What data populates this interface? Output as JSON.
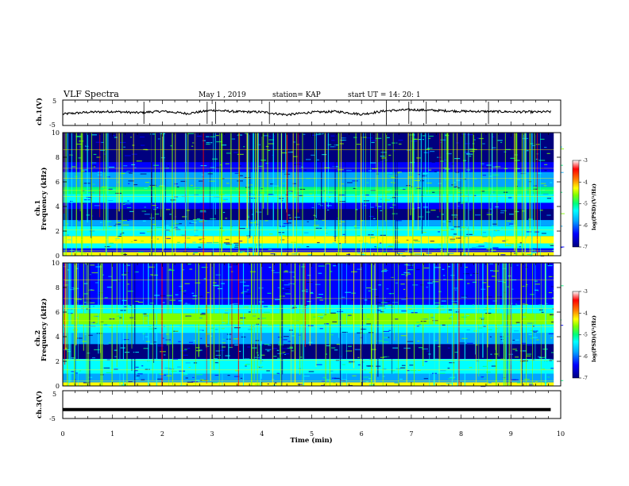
{
  "header": {
    "title": "VLF Spectra",
    "date": "May 1 , 2019",
    "station": "station= KAP",
    "start": "start UT = 14: 20: 1"
  },
  "colors": {
    "trace": "#000000",
    "colormap": [
      "#00007f",
      "#0000ff",
      "#00a5ff",
      "#00ffff",
      "#00ff7f",
      "#7fff00",
      "#ffff00",
      "#ff7f00",
      "#ff0000",
      "#ffffff"
    ]
  },
  "chart_data": [
    {
      "type": "line",
      "panel": "ch1-waveform",
      "ylabel": "ch.1(V)",
      "ylim": [
        -5,
        5
      ],
      "yticks": [
        "5",
        "-5"
      ],
      "xlim": [
        0,
        10
      ],
      "note_values": "noisy waveform approx between -1.5 and +1.5 V",
      "series": [
        {
          "x": [
            0,
            0.5,
            1,
            1.5,
            2,
            2.5,
            3,
            3.5,
            4,
            4.5,
            5,
            5.5,
            6,
            6.5,
            7,
            7.5,
            8,
            8.5,
            9,
            9.5,
            9.8
          ],
          "values": [
            -0.5,
            0.2,
            0.5,
            0.0,
            0.6,
            -0.3,
            1.0,
            0.4,
            0.3,
            -0.8,
            0.2,
            0.5,
            -0.6,
            0.8,
            1.2,
            0.9,
            0.6,
            0.5,
            0.4,
            0.3,
            0.4
          ]
        }
      ]
    },
    {
      "type": "heatmap",
      "panel": "ch1-spectrogram",
      "ylabel": "ch.1 Frequency (kHz)",
      "ylim": [
        0,
        10
      ],
      "yticks": [
        "0",
        "2",
        "4",
        "6",
        "8",
        "10"
      ],
      "xlim": [
        0,
        10
      ],
      "colorbar": {
        "label": "log(PSD)(V²/Hz)",
        "ticks": [
          "-3",
          "-4",
          "-5",
          "-6",
          "-7"
        ],
        "range": [
          -7,
          -3
        ]
      }
    },
    {
      "type": "heatmap",
      "panel": "ch2-spectrogram",
      "ylabel": "ch.2 Frequency (kHz)",
      "ylim": [
        0,
        10
      ],
      "yticks": [
        "0",
        "2",
        "4",
        "6",
        "8",
        "10"
      ],
      "xlim": [
        0,
        10
      ],
      "colorbar": {
        "label": "log(PSD)(V²/Hz)",
        "ticks": [
          "-3",
          "-4",
          "-5",
          "-6",
          "-7"
        ],
        "range": [
          -7,
          -3
        ]
      }
    },
    {
      "type": "line",
      "panel": "ch3-waveform",
      "ylabel": "ch.3(V)",
      "ylim": [
        -5,
        5
      ],
      "yticks": [
        "5",
        "-5"
      ],
      "xlim": [
        0,
        10
      ],
      "xlabel": "Time (min)",
      "xticks": [
        "0",
        "1",
        "2",
        "3",
        "4",
        "5",
        "6",
        "7",
        "8",
        "9",
        "10"
      ],
      "series": [
        {
          "x": [
            0,
            9.8
          ],
          "values": [
            -1.8,
            -1.8
          ]
        }
      ]
    }
  ]
}
